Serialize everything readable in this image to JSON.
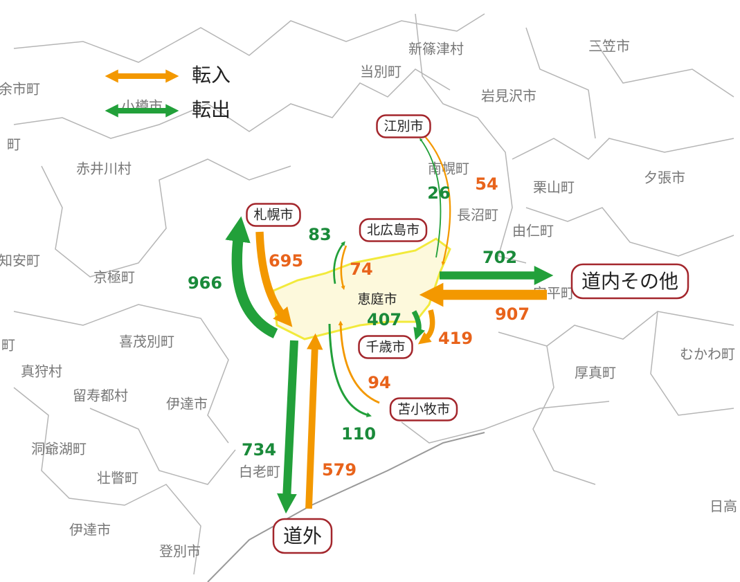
{
  "legend": [
    {
      "label": "転入",
      "color": "#f39800"
    },
    {
      "label": "転出",
      "color": "#22a03a"
    }
  ],
  "center": "恵庭市",
  "flows": [
    {
      "place": "札幌市",
      "in": 695,
      "out": 966
    },
    {
      "place": "北広島市",
      "in": 74,
      "out": 83
    },
    {
      "place": "江別市",
      "in": 54,
      "out": 26
    },
    {
      "place": "千歳市",
      "in": 419,
      "out": 407
    },
    {
      "place": "苫小牧市",
      "in": 94,
      "out": 110
    },
    {
      "place": "道内その他",
      "in": 907,
      "out": 702
    },
    {
      "place": "道外",
      "in": 579,
      "out": 734
    }
  ],
  "municipalities": [
    "新篠津村",
    "三笠市",
    "当別町",
    "岩見沢市",
    "余市町",
    "小樽市",
    "町",
    "赤井川村",
    "南幌町",
    "夕張市",
    "栗山町",
    "長沼町",
    "由仁町",
    "倶知安町",
    "京極町",
    "安平町",
    "喜茂別町",
    "町",
    "真狩村",
    "留寿都村",
    "伊達市",
    "厚真町",
    "むかわ町",
    "洞爺湖町",
    "白老町",
    "壮瞥町",
    "日高",
    "伊達市",
    "登別市"
  ]
}
